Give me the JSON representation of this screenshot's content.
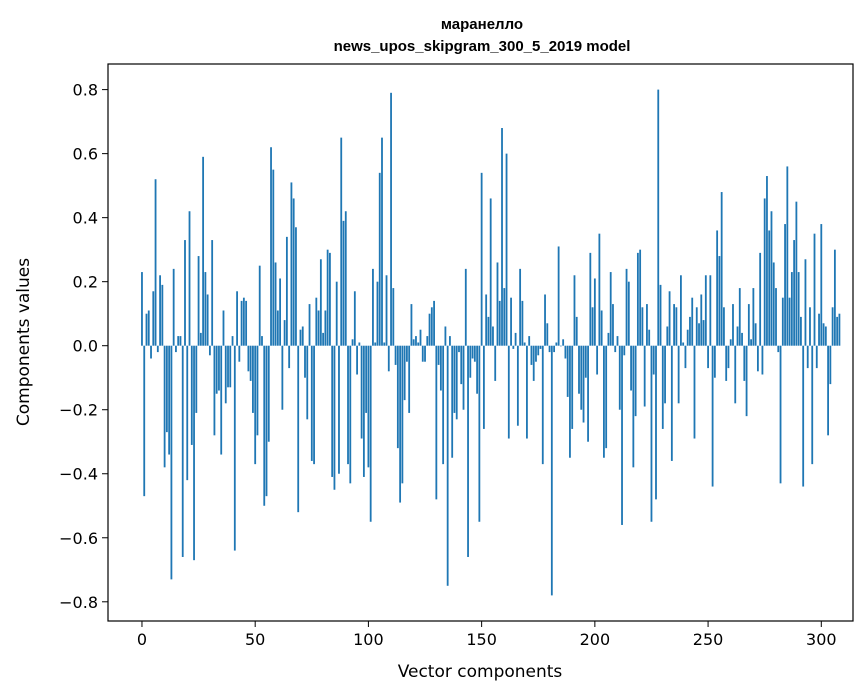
{
  "chart_data": {
    "type": "bar",
    "title": "маранелло",
    "subtitle": "news_upos_skipgram_300_5_2019 model",
    "xlabel": "Vector components",
    "ylabel": "Components values",
    "xlim": [
      -15,
      314
    ],
    "ylim": [
      -0.86,
      0.88
    ],
    "xticks": [
      0,
      50,
      100,
      150,
      200,
      250,
      300
    ],
    "xtick_labels": [
      "0",
      "50",
      "100",
      "150",
      "200",
      "250",
      "300"
    ],
    "yticks": [
      -0.8,
      -0.6,
      -0.4,
      -0.2,
      0.0,
      0.2,
      0.4,
      0.6,
      0.8
    ],
    "ytick_labels": [
      "−0.8",
      "−0.6",
      "−0.4",
      "−0.2",
      "0.0",
      "0.2",
      "0.4",
      "0.6",
      "0.8"
    ],
    "grid": false,
    "bar_color": "#1f77b4",
    "values": [
      0.23,
      -0.47,
      0.1,
      0.11,
      -0.04,
      0.17,
      0.52,
      -0.02,
      0.22,
      0.19,
      -0.38,
      -0.27,
      -0.34,
      -0.73,
      0.24,
      -0.02,
      0.03,
      0.03,
      -0.66,
      0.33,
      -0.42,
      0.42,
      -0.31,
      -0.67,
      -0.21,
      0.28,
      0.04,
      0.59,
      0.23,
      0.16,
      -0.03,
      0.33,
      -0.28,
      -0.15,
      -0.14,
      -0.34,
      0.11,
      -0.18,
      -0.13,
      -0.13,
      0.03,
      -0.64,
      0.17,
      -0.05,
      0.14,
      0.15,
      0.14,
      -0.08,
      -0.11,
      -0.21,
      -0.37,
      -0.28,
      0.25,
      0.03,
      -0.5,
      -0.47,
      -0.3,
      0.62,
      0.55,
      0.26,
      0.11,
      0.21,
      -0.2,
      0.08,
      0.34,
      -0.07,
      0.51,
      0.46,
      0.37,
      -0.52,
      0.05,
      0.06,
      -0.1,
      -0.23,
      0.13,
      -0.36,
      -0.37,
      0.15,
      0.11,
      0.27,
      0.04,
      0.11,
      0.3,
      0.29,
      -0.41,
      -0.45,
      0.2,
      -0.4,
      0.65,
      0.39,
      0.42,
      -0.37,
      -0.43,
      0.02,
      0.17,
      -0.09,
      0.01,
      -0.29,
      -0.41,
      -0.21,
      -0.38,
      -0.55,
      0.24,
      0.01,
      0.2,
      0.54,
      0.65,
      0.01,
      0.22,
      -0.08,
      0.79,
      0.18,
      -0.06,
      -0.32,
      -0.49,
      -0.43,
      -0.17,
      -0.05,
      -0.21,
      0.13,
      0.02,
      0.03,
      0.01,
      0.05,
      -0.05,
      -0.05,
      0.03,
      0.1,
      0.12,
      0.14,
      -0.48,
      -0.06,
      -0.14,
      -0.37,
      0.06,
      -0.75,
      0.03,
      -0.35,
      -0.21,
      -0.23,
      -0.02,
      -0.12,
      -0.2,
      0.24,
      -0.66,
      -0.1,
      -0.04,
      -0.05,
      -0.15,
      -0.55,
      0.54,
      -0.26,
      0.16,
      0.09,
      0.46,
      0.06,
      -0.11,
      0.26,
      0.14,
      0.68,
      0.18,
      0.6,
      -0.29,
      0.15,
      -0.01,
      0.04,
      -0.25,
      0.24,
      0.14,
      0.01,
      -0.29,
      0.03,
      -0.06,
      -0.11,
      -0.05,
      -0.03,
      -0.01,
      -0.37,
      0.16,
      0.07,
      -0.02,
      -0.78,
      -0.02,
      0.01,
      0.31,
      0.0,
      0.02,
      -0.04,
      -0.16,
      -0.35,
      -0.26,
      0.22,
      0.09,
      -0.15,
      -0.2,
      -0.24,
      -0.1,
      -0.3,
      0.29,
      0.12,
      0.21,
      -0.09,
      0.35,
      0.11,
      -0.35,
      -0.32,
      0.04,
      0.23,
      0.13,
      -0.02,
      0.03,
      -0.2,
      -0.56,
      -0.03,
      0.24,
      0.2,
      -0.14,
      -0.38,
      -0.22,
      0.29,
      0.3,
      0.12,
      -0.19,
      0.13,
      0.05,
      -0.55,
      -0.09,
      -0.48,
      0.8,
      0.19,
      -0.26,
      -0.18,
      0.06,
      0.17,
      -0.36,
      0.13,
      0.12,
      -0.18,
      0.22,
      0.01,
      -0.07,
      0.05,
      0.09,
      0.15,
      -0.29,
      0.12,
      0.07,
      0.16,
      0.08,
      0.22,
      -0.07,
      0.22,
      -0.44,
      -0.1,
      0.36,
      0.28,
      0.48,
      0.12,
      -0.11,
      -0.07,
      0.02,
      0.13,
      -0.18,
      0.06,
      0.18,
      0.04,
      -0.11,
      -0.22,
      0.13,
      0.02,
      0.18,
      0.07,
      -0.08,
      0.29,
      -0.09,
      0.46,
      0.53,
      0.36,
      0.42,
      0.26,
      0.18,
      -0.02,
      -0.43,
      0.15,
      0.38,
      0.56,
      0.15,
      0.23,
      0.33,
      0.45,
      0.23,
      0.09,
      -0.44,
      0.27,
      -0.07,
      0.12,
      -0.37,
      0.35,
      -0.07,
      0.1,
      0.38,
      0.07,
      0.06,
      -0.28,
      -0.12,
      0.12,
      0.3,
      0.09,
      0.1
    ]
  }
}
